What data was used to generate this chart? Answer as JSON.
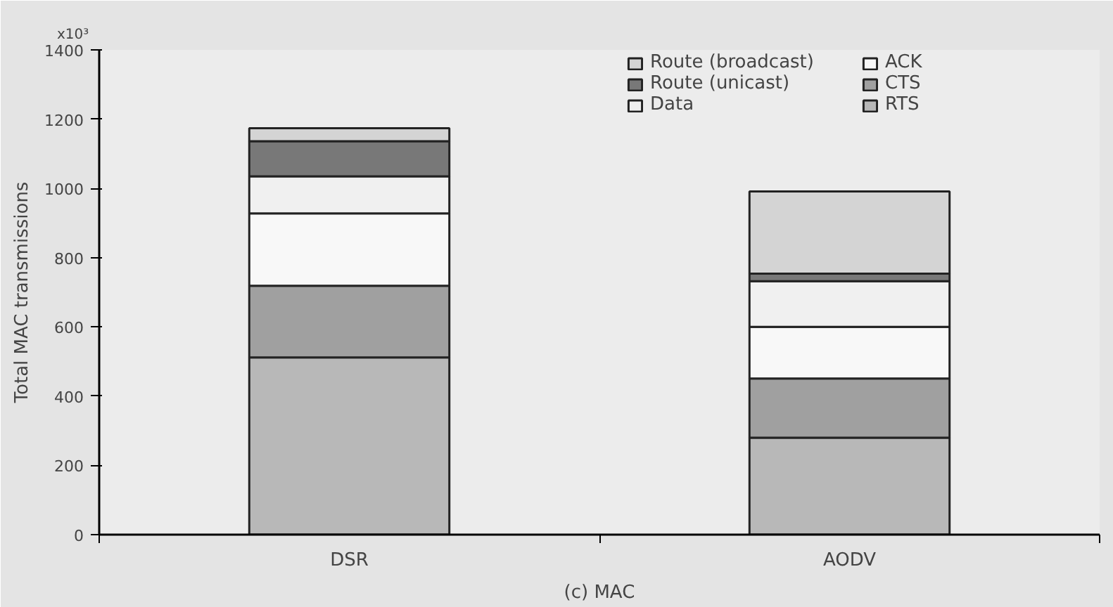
{
  "chart_data": {
    "type": "bar",
    "stacked": true,
    "ylabel": "Total MAC transmissions",
    "xlabel": "(c) MAC",
    "annotations": [
      "x10³"
    ],
    "categories": [
      "DSR",
      "AODV"
    ],
    "series": [
      {
        "name": "RTS",
        "color": "#b8b8b8",
        "values": [
          512,
          280
        ]
      },
      {
        "name": "CTS",
        "color": "#a0a0a0",
        "values": [
          207,
          171
        ]
      },
      {
        "name": "ACK",
        "color": "#f8f8f8",
        "values": [
          209,
          149
        ]
      },
      {
        "name": "Data",
        "color": "#f0f0f0",
        "values": [
          107,
          132
        ]
      },
      {
        "name": "Route (unicast)",
        "color": "#787878",
        "values": [
          101,
          22
        ]
      },
      {
        "name": "Route (broadcast)",
        "color": "#d4d4d4",
        "values": [
          38,
          237
        ]
      }
    ],
    "ylim": [
      0,
      1400
    ],
    "yticks": [
      0,
      200,
      400,
      600,
      800,
      1000,
      1200,
      1400
    ],
    "grid": false,
    "legend": "top right"
  }
}
